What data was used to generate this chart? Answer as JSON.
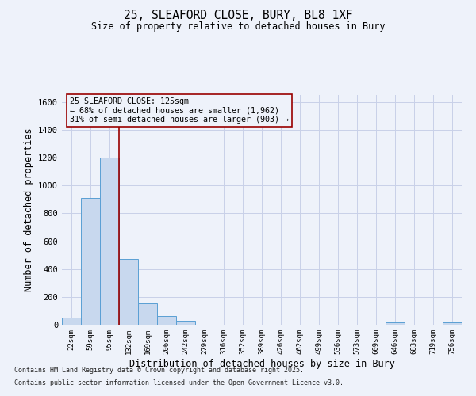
{
  "title1": "25, SLEAFORD CLOSE, BURY, BL8 1XF",
  "title2": "Size of property relative to detached houses in Bury",
  "xlabel": "Distribution of detached houses by size in Bury",
  "ylabel": "Number of detached properties",
  "categories": [
    "22sqm",
    "59sqm",
    "95sqm",
    "132sqm",
    "169sqm",
    "206sqm",
    "242sqm",
    "279sqm",
    "316sqm",
    "352sqm",
    "389sqm",
    "426sqm",
    "462sqm",
    "499sqm",
    "536sqm",
    "573sqm",
    "609sqm",
    "646sqm",
    "683sqm",
    "719sqm",
    "756sqm"
  ],
  "bar_heights": [
    50,
    910,
    1200,
    475,
    155,
    60,
    30,
    0,
    0,
    0,
    0,
    0,
    0,
    0,
    0,
    0,
    0,
    18,
    0,
    0,
    18
  ],
  "bar_color": "#c8d8ee",
  "bar_edge_color": "#5a9fd4",
  "ylim": [
    0,
    1650
  ],
  "yticks": [
    0,
    200,
    400,
    600,
    800,
    1000,
    1200,
    1400,
    1600
  ],
  "vline_color": "#990000",
  "annotation_line1": "25 SLEAFORD CLOSE: 125sqm",
  "annotation_line2": "← 68% of detached houses are smaller (1,962)",
  "annotation_line3": "31% of semi-detached houses are larger (903) →",
  "footer1": "Contains HM Land Registry data © Crown copyright and database right 2025.",
  "footer2": "Contains public sector information licensed under the Open Government Licence v3.0.",
  "bg_color": "#eef2fa",
  "grid_color": "#c8d0e8"
}
